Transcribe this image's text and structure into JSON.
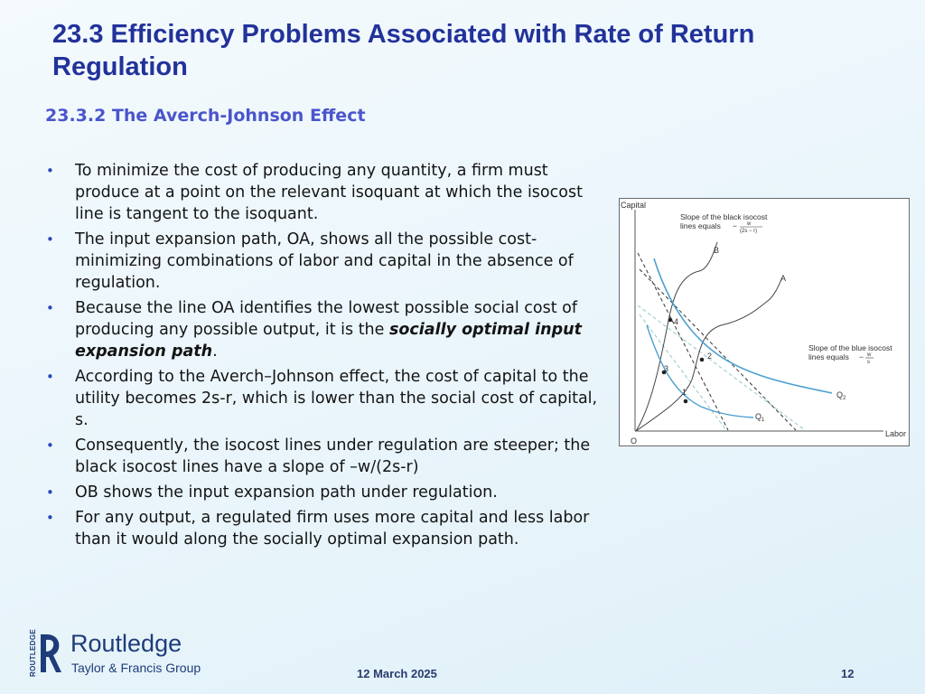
{
  "slide": {
    "title": "23.3  Efficiency Problems Associated with Rate of Return Regulation",
    "subtitle": "23.3.2  The Averch-Johnson Effect",
    "bullet_marker": "•",
    "bullets": [
      "To minimize the cost of producing any quantity, a firm must produce at a point on the relevant isoquant at which the isocost line is tangent to the isoquant.",
      "The input expansion path, OA, shows all the possible cost-minimizing combinations of labor and capital in the absence of regulation.",
      {
        "pre": "Because the line OA identifies the lowest possible social cost of producing any possible output, it is the ",
        "emph": "socially optimal input expansion path",
        "post": "."
      },
      "According to the Averch–Johnson effect, the cost of capital to the utility becomes 2s-r, which is lower than the social cost of capital, s.",
      "Consequently, the isocost lines under regulation are steeper; the black isocost lines have a slope of –w/(2s-r)",
      " OB shows the input expansion path under regulation.",
      "For any output, a regulated firm uses more capital and less labor than it would along the socially optimal expansion path."
    ]
  },
  "figure": {
    "y_axis": "Capital",
    "x_axis": "Labor",
    "origin": "O",
    "path_a": "A",
    "path_b": "B",
    "points": [
      "1",
      "2",
      "3",
      "4"
    ],
    "isoquant_1": "Q",
    "isoquant_1_sub": "1",
    "isoquant_2": "Q",
    "isoquant_2_sub": "2",
    "note_black_line1": "Slope of the black isocost",
    "note_black_line2": "lines equals",
    "note_black_num": "w",
    "note_black_den": "(2s − r)",
    "note_blue_line1": "Slope of the blue isocost",
    "note_blue_line2": "lines equals",
    "note_blue_num": "w",
    "note_blue_den": "s",
    "colors": {
      "isoquant": "#4a9fd0",
      "dashed_blue": "#93c7cc",
      "dashed_black": "#333333",
      "curve": "#444444"
    }
  },
  "logo": {
    "vertical": "ROUTLEDGE",
    "name": "Routledge",
    "tagline": "Taylor & Francis Group"
  },
  "footer": {
    "date": "12 March 2025",
    "page": "12"
  },
  "theme": {
    "title_color": "#22329a",
    "subtitle_color": "#4a55cc",
    "bullet_color": "#2a46b8"
  }
}
